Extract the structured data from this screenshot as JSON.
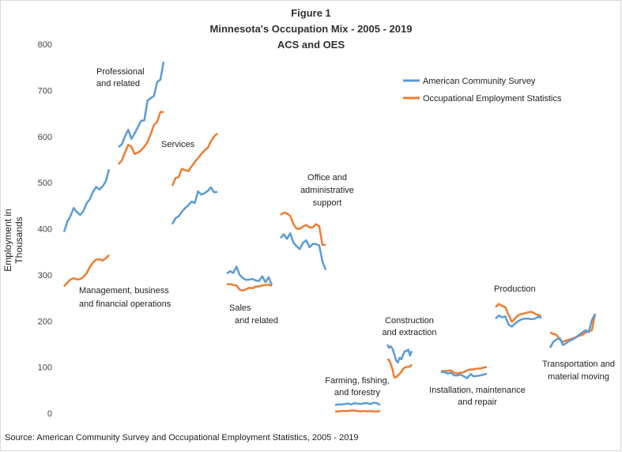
{
  "chart_data": {
    "type": "line",
    "title": [
      "Figure 1",
      "Minnesota's Occupation Mix - 2005 - 2019",
      "ACS and OES"
    ],
    "ylabel": "Employment in Thousands",
    "ylim": [
      0,
      800
    ],
    "yticks": [
      "0",
      "100",
      "200",
      "300",
      "400",
      "500",
      "600",
      "700",
      "800"
    ],
    "source": "Source: American Community Survey and Occupational Employment Statistics, 2005 - 2019",
    "legend": {
      "placement": "top-right",
      "entries": [
        {
          "name": "American Community Survey",
          "color": "#5b9bd5"
        },
        {
          "name": "Occupational Employment Statistics",
          "color": "#ed7d31"
        }
      ]
    },
    "colors": {
      "acs": "#5b9bd5",
      "oes": "#ed7d31"
    },
    "groups": [
      {
        "label": [
          "Management, business",
          "and financial operations"
        ],
        "acs": [
          393,
          415,
          427,
          445,
          436,
          430,
          438,
          455,
          464,
          480,
          491,
          485,
          492,
          503,
          529
        ],
        "oes": [
          275,
          283,
          290,
          293,
          290,
          291,
          295,
          303,
          317,
          327,
          333,
          334,
          331,
          336,
          343
        ]
      },
      {
        "label": [
          "Professional",
          "and related"
        ],
        "acs": [
          577,
          583,
          600,
          615,
          595,
          607,
          620,
          634,
          635,
          678,
          683,
          688,
          718,
          723,
          762
        ],
        "oes": [
          540,
          548,
          565,
          582,
          578,
          562,
          565,
          570,
          578,
          588,
          605,
          625,
          632,
          653,
          653
        ]
      },
      {
        "label": [
          "Services"
        ],
        "acs": [
          410,
          423,
          427,
          437,
          445,
          451,
          459,
          456,
          481,
          474,
          477,
          482,
          490,
          479,
          480
        ],
        "oes": [
          493,
          510,
          512,
          530,
          527,
          525,
          535,
          545,
          553,
          562,
          570,
          575,
          590,
          600,
          607
        ]
      },
      {
        "label": [
          "Sales",
          "and related"
        ],
        "acs": [
          303,
          308,
          304,
          318,
          300,
          293,
          289,
          290,
          291,
          288,
          287,
          297,
          284,
          295,
          278
        ],
        "oes": [
          280,
          280,
          278,
          277,
          268,
          266,
          269,
          272,
          271,
          275,
          275,
          277,
          278,
          279,
          276
        ]
      },
      {
        "label": [
          "Office and",
          "administrative",
          "support"
        ],
        "acs": [
          380,
          388,
          378,
          390,
          370,
          362,
          356,
          370,
          375,
          360,
          367,
          367,
          364,
          330,
          311
        ],
        "oes": [
          430,
          435,
          433,
          428,
          410,
          400,
          400,
          405,
          408,
          403,
          403,
          410,
          406,
          365,
          365
        ]
      },
      {
        "label": [
          "Farming, fishing,",
          "and forestry"
        ],
        "acs": [
          18,
          19,
          19,
          20,
          21,
          19,
          22,
          21,
          20,
          22,
          22,
          20,
          23,
          22,
          18
        ],
        "oes": [
          4,
          4,
          5,
          5,
          5,
          6,
          6,
          5,
          4,
          5,
          4,
          5,
          4,
          4,
          5
        ]
      },
      {
        "label": [
          "Construction",
          "and extraction"
        ],
        "acs": [
          149,
          142,
          145,
          140,
          128,
          115,
          110,
          120,
          117,
          126,
          135,
          135,
          138,
          125,
          135
        ],
        "oes": [
          116,
          116,
          107,
          95,
          78,
          78,
          82,
          85,
          90,
          96,
          99,
          100,
          101,
          101,
          106
        ]
      },
      {
        "label": [
          "Installation, maintenance",
          "and repair"
        ],
        "acs": [
          89,
          90,
          86,
          88,
          82,
          82,
          84,
          80,
          76,
          85,
          80,
          81,
          82,
          84,
          86
        ],
        "oes": [
          92,
          91,
          92,
          93,
          88,
          86,
          88,
          89,
          93,
          95,
          95,
          97,
          97,
          99,
          100
        ]
      },
      {
        "label": [
          "Production"
        ],
        "acs": [
          205,
          212,
          208,
          210,
          192,
          188,
          195,
          200,
          204,
          205,
          205,
          204,
          205,
          209,
          207
        ],
        "oes": [
          230,
          237,
          233,
          230,
          213,
          198,
          206,
          213,
          215,
          217,
          219,
          220,
          216,
          213,
          210
        ]
      },
      {
        "label": [
          "Transportation and",
          "material moving"
        ],
        "acs": [
          142,
          155,
          160,
          163,
          148,
          152,
          157,
          160,
          164,
          170,
          175,
          180,
          176,
          202,
          215
        ],
        "oes": [
          175,
          172,
          170,
          160,
          155,
          158,
          160,
          162,
          165,
          168,
          170,
          175,
          178,
          180,
          216
        ]
      }
    ]
  }
}
